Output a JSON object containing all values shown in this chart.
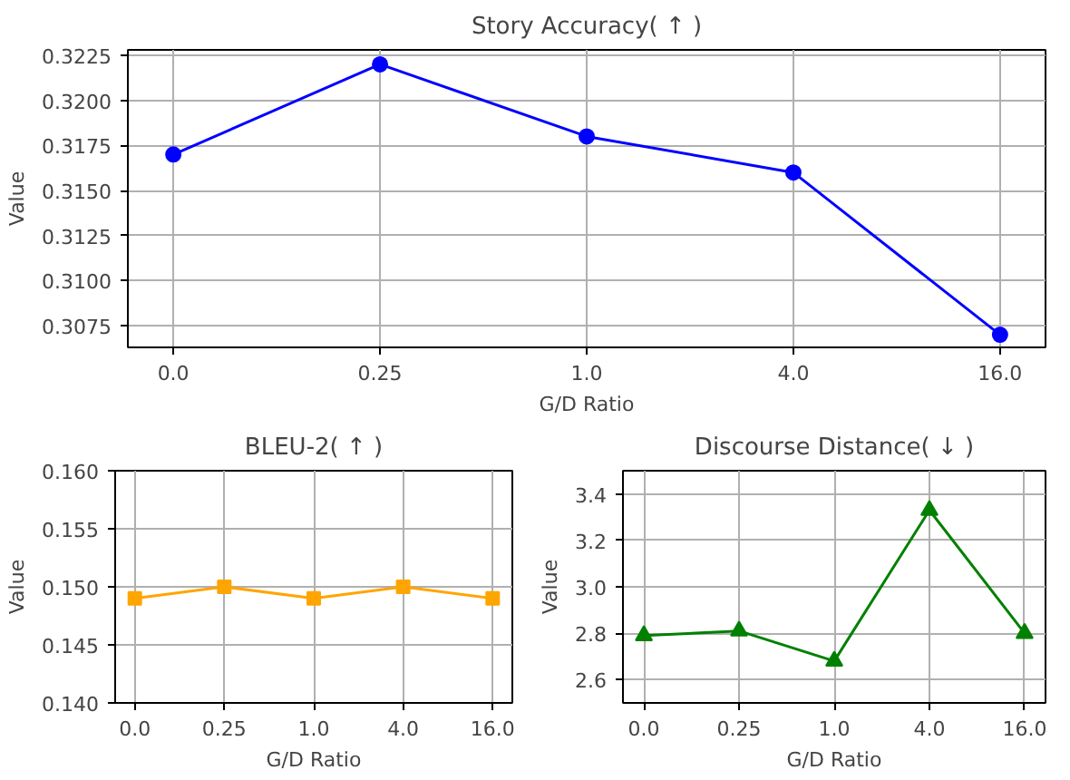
{
  "chart_data": [
    {
      "type": "line",
      "title": "Story Accuracy( ↑ )",
      "xlabel": "G/D Ratio",
      "ylabel": "Value",
      "categories": [
        "0.0",
        "0.25",
        "1.0",
        "4.0",
        "16.0"
      ],
      "series": [
        {
          "color": "#0000ff",
          "values": [
            0.317,
            0.322,
            0.318,
            0.316,
            0.307
          ]
        }
      ],
      "ylim": [
        0.3063,
        0.3228
      ],
      "yticks": [
        {
          "value": 0.3075,
          "label": "0.3075"
        },
        {
          "value": 0.31,
          "label": "0.3100"
        },
        {
          "value": 0.3125,
          "label": "0.3125"
        },
        {
          "value": 0.315,
          "label": "0.3150"
        },
        {
          "value": 0.3175,
          "label": "0.3175"
        },
        {
          "value": 0.32,
          "label": "0.3200"
        },
        {
          "value": 0.3225,
          "label": "0.3225"
        }
      ],
      "grid": true,
      "marker": "circle",
      "line_style": "solid"
    },
    {
      "type": "line",
      "title": "BLEU-2( ↑ )",
      "xlabel": "G/D Ratio",
      "ylabel": "Value",
      "categories": [
        "0.0",
        "0.25",
        "1.0",
        "4.0",
        "16.0"
      ],
      "series": [
        {
          "color": "#ffa500",
          "values": [
            0.149,
            0.15,
            0.149,
            0.15,
            0.149
          ]
        }
      ],
      "ylim": [
        0.14,
        0.16
      ],
      "yticks": [
        {
          "value": 0.14,
          "label": "0.140"
        },
        {
          "value": 0.145,
          "label": "0.145"
        },
        {
          "value": 0.15,
          "label": "0.150"
        },
        {
          "value": 0.155,
          "label": "0.155"
        },
        {
          "value": 0.16,
          "label": "0.160"
        }
      ],
      "grid": true,
      "marker": "square",
      "line_style": "solid"
    },
    {
      "type": "line",
      "title": "Discourse Distance( ↓ )",
      "xlabel": "G/D Ratio",
      "ylabel": "Value",
      "categories": [
        "0.0",
        "0.25",
        "1.0",
        "4.0",
        "16.0"
      ],
      "series": [
        {
          "color": "#008000",
          "values": [
            2.79,
            2.81,
            2.68,
            3.33,
            2.8
          ]
        }
      ],
      "ylim": [
        2.5,
        3.5
      ],
      "yticks": [
        {
          "value": 2.6,
          "label": "2.6"
        },
        {
          "value": 2.8,
          "label": "2.8"
        },
        {
          "value": 3.0,
          "label": "3.0"
        },
        {
          "value": 3.2,
          "label": "3.2"
        },
        {
          "value": 3.4,
          "label": "3.4"
        }
      ],
      "grid": true,
      "marker": "triangle",
      "line_style": "solid"
    }
  ]
}
